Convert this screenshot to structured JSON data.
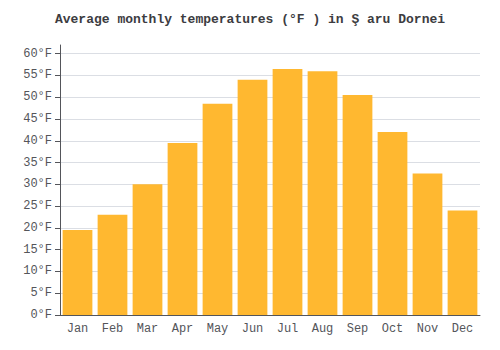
{
  "chart_data": {
    "type": "bar",
    "title": "Average monthly temperatures (°F ) in Ş aru Dornei",
    "categories": [
      "Jan",
      "Feb",
      "Mar",
      "Apr",
      "May",
      "Jun",
      "Jul",
      "Aug",
      "Sep",
      "Oct",
      "Nov",
      "Dec"
    ],
    "values": [
      19.5,
      23,
      30,
      39.5,
      48.5,
      54,
      56.5,
      56,
      50.5,
      42,
      32.5,
      24
    ],
    "color": "#FFB830",
    "ylim": [
      0,
      62
    ],
    "yticks": [
      {
        "value": 0,
        "label": "0°F"
      },
      {
        "value": 5,
        "label": "5°F"
      },
      {
        "value": 10,
        "label": "10°F"
      },
      {
        "value": 15,
        "label": "15°F"
      },
      {
        "value": 20,
        "label": "20°F"
      },
      {
        "value": 25,
        "label": "25°F"
      },
      {
        "value": 30,
        "label": "30°F"
      },
      {
        "value": 35,
        "label": "35°F"
      },
      {
        "value": 40,
        "label": "40°F"
      },
      {
        "value": 45,
        "label": "45°F"
      },
      {
        "value": 50,
        "label": "50°F"
      },
      {
        "value": 55,
        "label": "55°F"
      },
      {
        "value": 60,
        "label": "60°F"
      }
    ],
    "grid": true
  }
}
